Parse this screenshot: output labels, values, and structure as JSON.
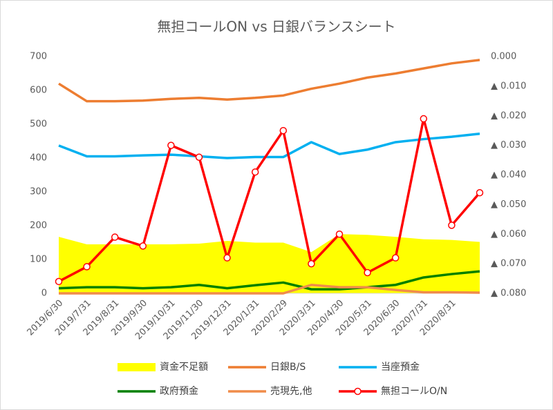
{
  "chart_data": {
    "type": "line",
    "title": "無担コールON  vs 日銀バランスシート",
    "categories": [
      "2019/6/30",
      "2019/7/31",
      "2019/8/31",
      "2019/9/30",
      "2019/10/31",
      "2019/11/30",
      "2019/12/31",
      "2020/1/31",
      "2020/2/29",
      "2020/3/31",
      "2020/4/30",
      "2020/5/31",
      "2020/6/30",
      "2020/7/31",
      "2020/8/31",
      null
    ],
    "ylim": [
      0,
      700
    ],
    "yticks": [
      0,
      100,
      200,
      300,
      400,
      500,
      600,
      700
    ],
    "y2lim": [
      -0.08,
      0
    ],
    "y2ticks": [
      {
        "value": 0,
        "label": "0.000"
      },
      {
        "value": -0.01,
        "label": "▲ 0.010"
      },
      {
        "value": -0.02,
        "label": "▲ 0.020"
      },
      {
        "value": -0.03,
        "label": "▲ 0.030"
      },
      {
        "value": -0.04,
        "label": "▲ 0.040"
      },
      {
        "value": -0.05,
        "label": "▲ 0.050"
      },
      {
        "value": -0.06,
        "label": "▲ 0.060"
      },
      {
        "value": -0.07,
        "label": "▲ 0.070"
      },
      {
        "value": -0.08,
        "label": "▲ 0.080"
      }
    ],
    "grid": false,
    "legend": "bottom",
    "series": [
      {
        "name": "資金不足額",
        "type": "area",
        "color": "#ffff00",
        "values": [
          167,
          145,
          145,
          145,
          145,
          147,
          155,
          150,
          150,
          122,
          175,
          173,
          167,
          160,
          158,
          152
        ]
      },
      {
        "name": "日銀B/S",
        "color": "#ed7d31",
        "values": [
          620,
          568,
          568,
          570,
          575,
          578,
          573,
          578,
          585,
          605,
          620,
          638,
          650,
          665,
          680,
          690
        ]
      },
      {
        "name": "当座預金",
        "color": "#00b0f0",
        "values": [
          437,
          405,
          405,
          408,
          410,
          405,
          400,
          403,
          403,
          447,
          412,
          425,
          447,
          456,
          463,
          472
        ]
      },
      {
        "name": "政府預金",
        "color": "#008000",
        "values": [
          15,
          18,
          18,
          15,
          18,
          25,
          15,
          24,
          32,
          12,
          12,
          18,
          25,
          47,
          57,
          65
        ]
      },
      {
        "name": "売現先,他",
        "color": "#f08c4a",
        "values": [
          0,
          0,
          0,
          0,
          0,
          0,
          0,
          0,
          0,
          25,
          18,
          18,
          10,
          3,
          3,
          2
        ]
      },
      {
        "name": "無担コールO/N",
        "color": "#ff0000",
        "axis": "y2",
        "marker": true,
        "values": [
          -0.076,
          -0.071,
          -0.061,
          -0.064,
          -0.03,
          -0.034,
          -0.068,
          -0.039,
          -0.025,
          -0.07,
          -0.06,
          -0.073,
          -0.068,
          -0.021,
          -0.057,
          -0.046
        ]
      }
    ]
  }
}
